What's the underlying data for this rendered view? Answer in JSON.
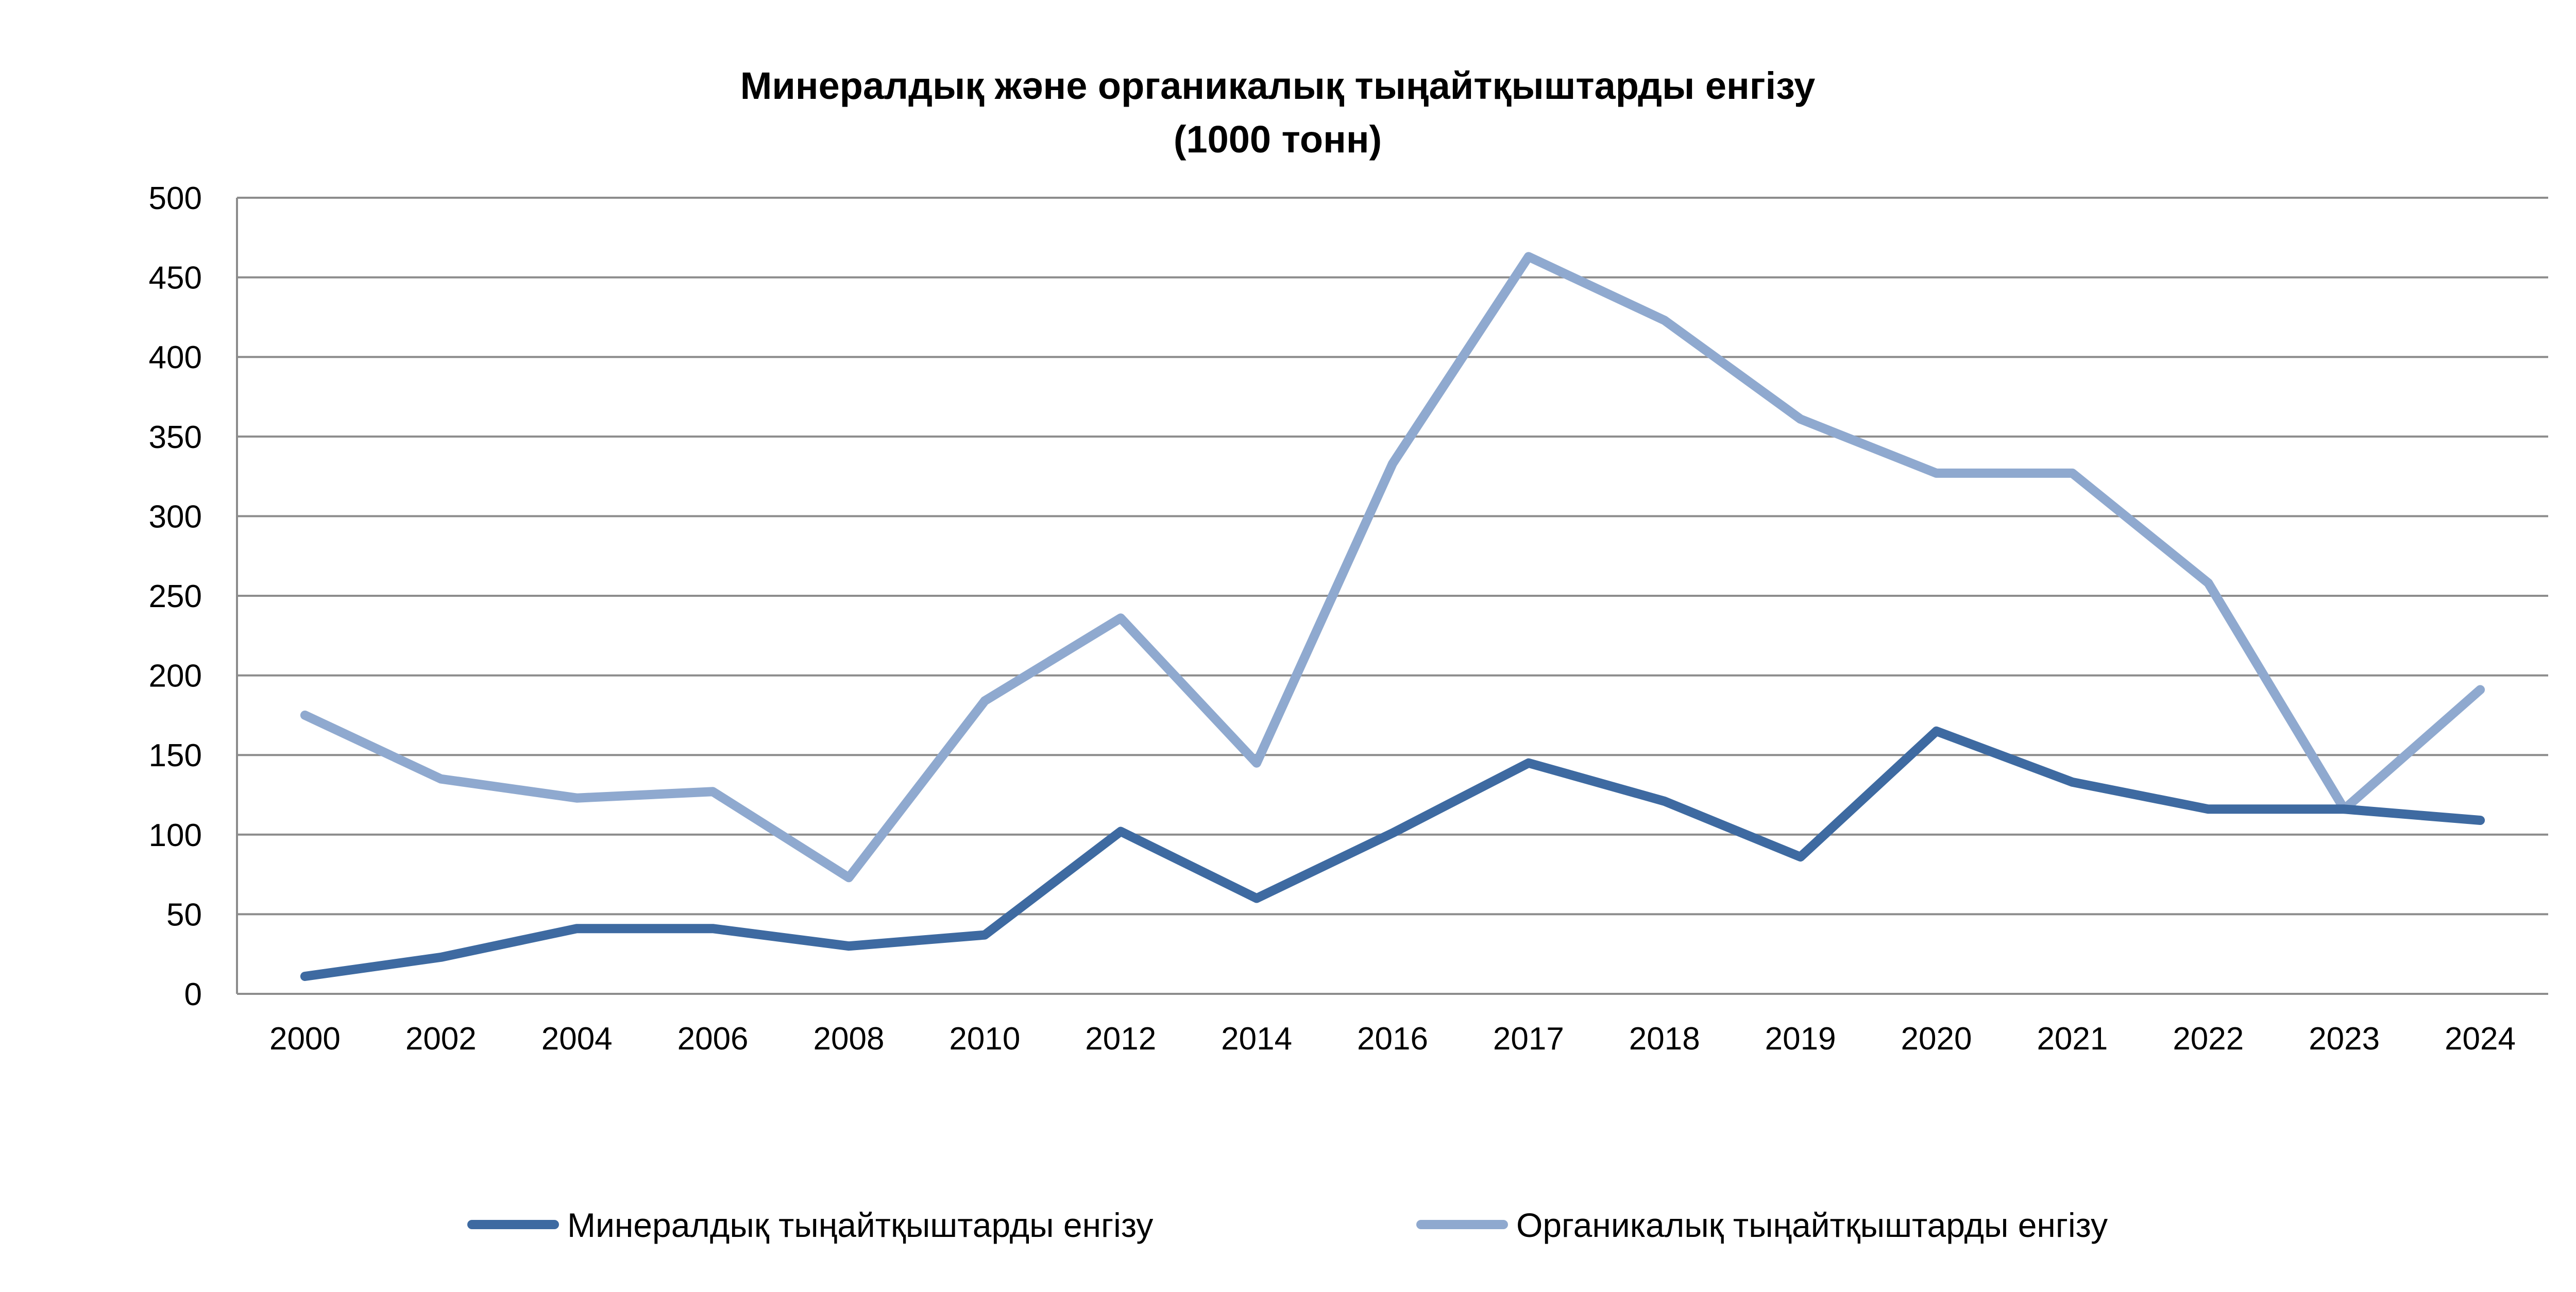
{
  "chart_data": {
    "type": "line",
    "title": "Минералдық және органикалық тыңайтқыштарды енгізу",
    "subtitle": "(1000 тонн)",
    "categories": [
      "2000",
      "2002",
      "2004",
      "2006",
      "2008",
      "2010",
      "2012",
      "2014",
      "2016",
      "2017",
      "2018",
      "2019",
      "2020",
      "2021",
      "2022",
      "2023",
      "2024"
    ],
    "series": [
      {
        "name": "Минералдық тыңайтқыштарды енгізу",
        "color": "#3e6aa1",
        "values": [
          11,
          23,
          41,
          41,
          30,
          37,
          102,
          60,
          101,
          145,
          121,
          86,
          165,
          133,
          116,
          116,
          109
        ]
      },
      {
        "name": "Органикалық тыңайтқыштарды енгізу",
        "color": "#8fa9cf",
        "values": [
          175,
          135,
          123,
          127,
          73,
          184,
          236,
          145,
          333,
          463,
          423,
          361,
          327,
          327,
          258,
          116,
          191
        ]
      }
    ],
    "ylim": [
      0,
      500
    ],
    "yticks": [
      0,
      50,
      100,
      150,
      200,
      250,
      300,
      350,
      400,
      450,
      500
    ],
    "grid": true,
    "gridline_color": "#8c8c8c",
    "legend_position": "bottom"
  }
}
